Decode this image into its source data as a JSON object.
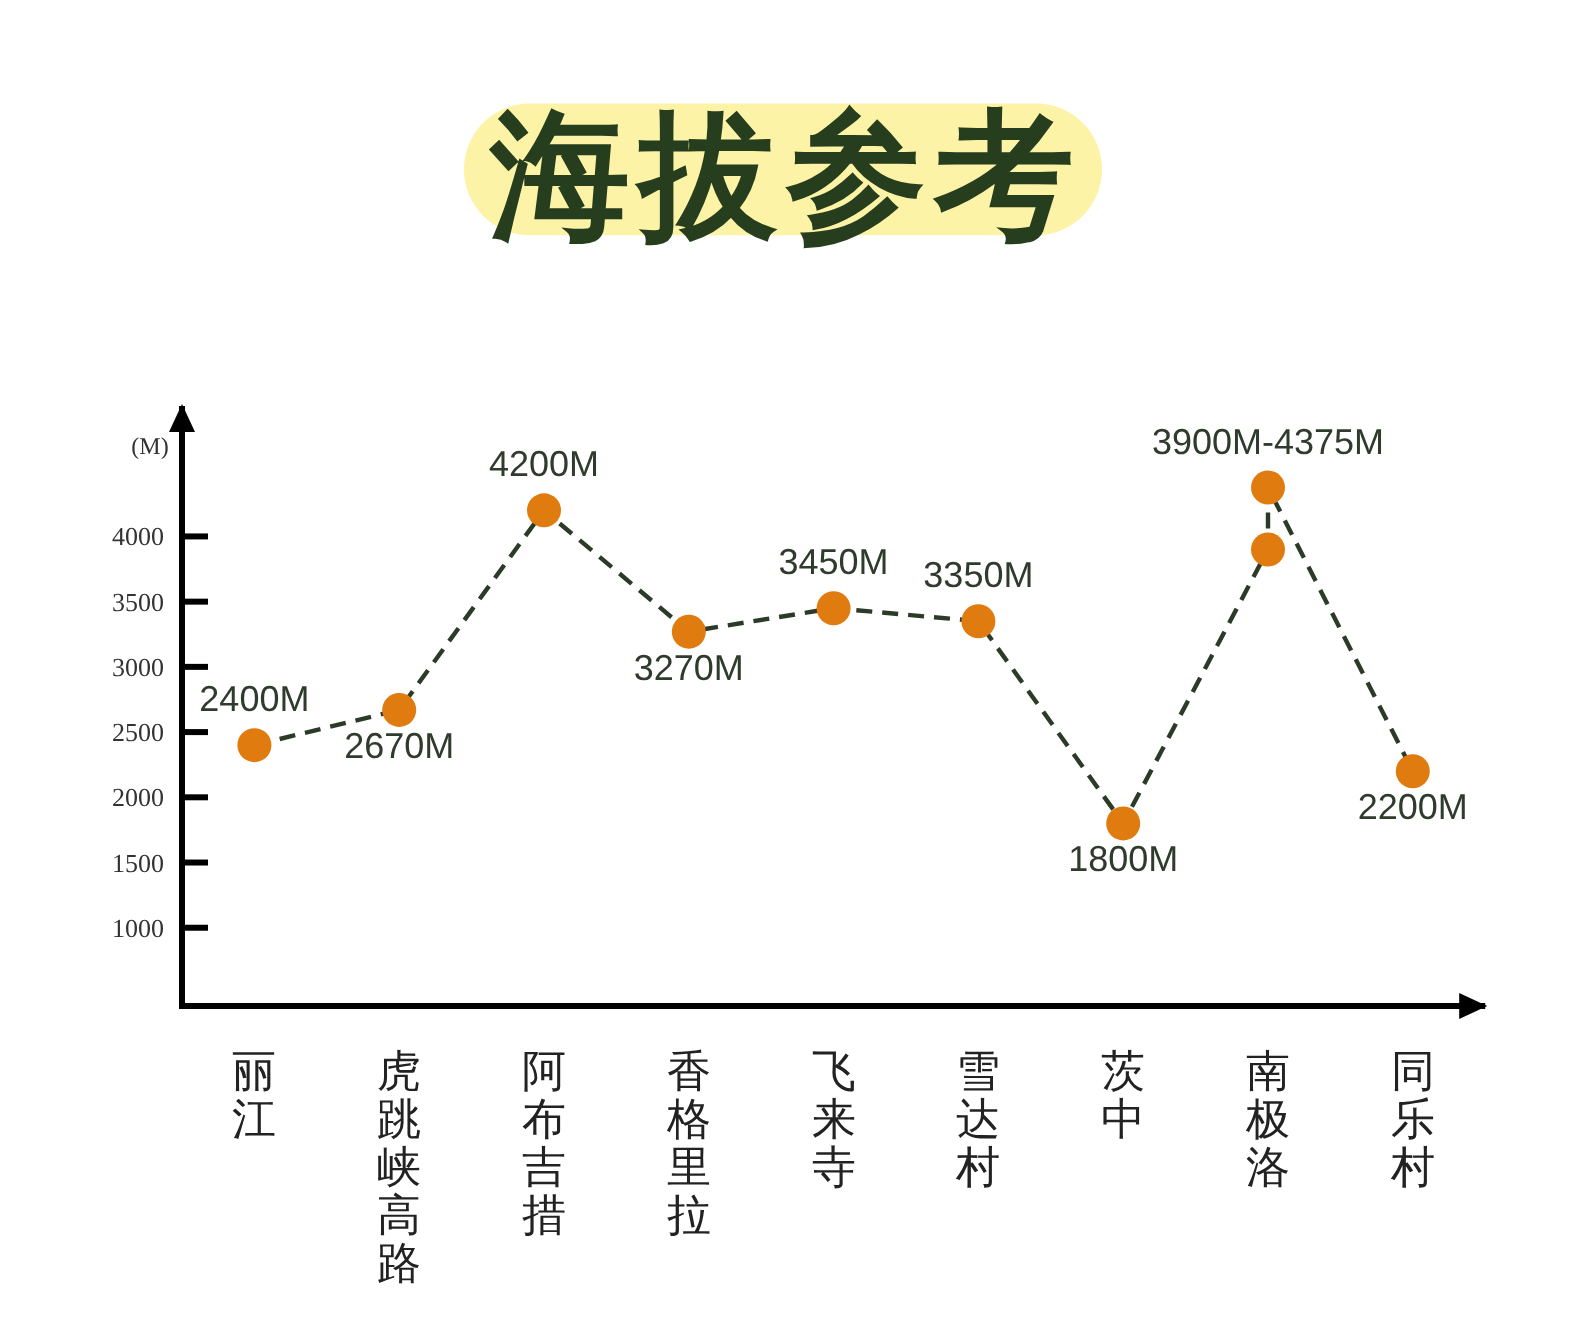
{
  "chart_data": {
    "type": "line",
    "title": "海拔参考",
    "ylabel": "(M)",
    "categories": [
      "丽江",
      "虎跳峡高路",
      "阿布吉措",
      "香格里拉",
      "飞来寺",
      "雪达村",
      "茨中",
      "南极洛",
      "同乐村"
    ],
    "series": [
      {
        "x": [
          "丽江",
          "虎跳峡高路",
          "阿布吉措",
          "香格里拉",
          "飞来寺",
          "雪达村",
          "茨中",
          "南极洛",
          "南极洛",
          "同乐村"
        ],
        "values": [
          2400,
          2670,
          4200,
          3270,
          3450,
          3350,
          1800,
          3900,
          4375,
          2200
        ],
        "color": "#2b3b28",
        "colors": [
          "#e07b0f",
          "#e07b0f",
          "#e07b0f",
          "#e07b0f",
          "#e07b0f",
          "#e07b0f",
          "#e07b0f",
          "#e07b0f",
          "#e07b0f",
          "#e07b0f"
        ],
        "value_labels": [
          "2400M",
          "2670M",
          "4200M",
          "3270M",
          "3450M",
          "3350M",
          "1800M",
          null,
          null,
          "2200M"
        ]
      }
    ],
    "annotations": [
      {
        "text": "3900M-4375M",
        "x": "南极洛",
        "y": 4375
      }
    ],
    "ylim": [
      400,
      5000
    ],
    "yticks": [
      1000,
      1500,
      2000,
      2500,
      3000,
      3500,
      4000
    ],
    "marker": "circle",
    "line_style": "dashed"
  }
}
